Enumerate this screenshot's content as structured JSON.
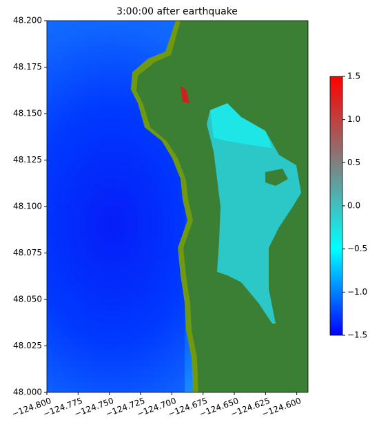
{
  "chart_data": {
    "type": "image",
    "title": "3:00:00 after earthquake",
    "xlim": [
      -124.8,
      -124.591
    ],
    "ylim": [
      48.0,
      48.2
    ],
    "xticks": [
      {
        "value": -124.8,
        "label": "−124.800"
      },
      {
        "value": -124.775,
        "label": "−124.775"
      },
      {
        "value": -124.75,
        "label": "−124.750"
      },
      {
        "value": -124.725,
        "label": "−124.725"
      },
      {
        "value": -124.7,
        "label": "−124.700"
      },
      {
        "value": -124.675,
        "label": "−124.675"
      },
      {
        "value": -124.65,
        "label": "−124.650"
      },
      {
        "value": -124.625,
        "label": "−124.625"
      },
      {
        "value": -124.6,
        "label": "−124.600"
      }
    ],
    "yticks": [
      {
        "value": 48.0,
        "label": "48.000"
      },
      {
        "value": 48.025,
        "label": "48.025"
      },
      {
        "value": 48.05,
        "label": "48.050"
      },
      {
        "value": 48.075,
        "label": "48.075"
      },
      {
        "value": 48.1,
        "label": "48.100"
      },
      {
        "value": 48.125,
        "label": "48.125"
      },
      {
        "value": 48.15,
        "label": "48.150"
      },
      {
        "value": 48.175,
        "label": "48.175"
      },
      {
        "value": 48.2,
        "label": "48.200"
      }
    ],
    "colorbar": {
      "lim": [
        -1.5,
        1.5
      ],
      "ticks": [
        {
          "value": -1.5,
          "label": "−1.5"
        },
        {
          "value": -1.0,
          "label": "−1.0"
        },
        {
          "value": -0.5,
          "label": "−0.5"
        },
        {
          "value": 0.0,
          "label": "0.0"
        },
        0.5,
        {
          "value": 1.0,
          "label": "1.0"
        },
        1.5
      ],
      "colors": [
        "#0000ff",
        "#00ffff",
        "#808080",
        "#ff0000"
      ]
    }
  }
}
